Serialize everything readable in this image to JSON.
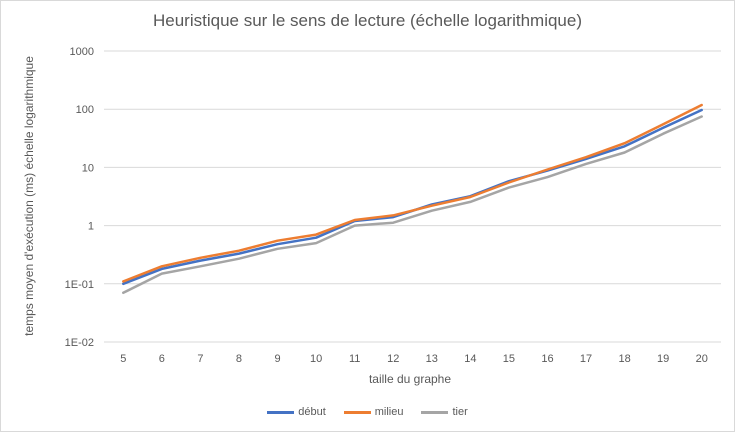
{
  "chart_data": {
    "type": "line",
    "title": "Heuristique sur le sens de lecture (échelle logarithmique)",
    "xlabel": "taille du graphe",
    "ylabel": "temps moyen d'exécution (ms) échelle logarithmique",
    "y_scale": "log",
    "ylim": [
      0.01,
      1000
    ],
    "y_tick_labels": [
      "1E-02",
      "1E-01",
      "1",
      "10",
      "100",
      "1000"
    ],
    "grid": true,
    "legend_position": "bottom",
    "x": [
      5,
      6,
      7,
      8,
      9,
      10,
      11,
      12,
      13,
      14,
      15,
      16,
      17,
      18,
      19,
      20
    ],
    "series": [
      {
        "name": "début",
        "color": "#4472c4",
        "values": [
          0.1,
          0.18,
          0.25,
          0.33,
          0.48,
          0.62,
          1.2,
          1.4,
          2.3,
          3.2,
          5.8,
          8.8,
          14,
          23,
          48,
          97
        ]
      },
      {
        "name": "milieu",
        "color": "#ed7d31",
        "values": [
          0.11,
          0.2,
          0.28,
          0.37,
          0.55,
          0.7,
          1.25,
          1.5,
          2.2,
          3.1,
          5.5,
          9.2,
          15,
          26,
          55,
          118
        ]
      },
      {
        "name": "tier",
        "color": "#a5a5a5",
        "values": [
          0.07,
          0.15,
          0.2,
          0.27,
          0.4,
          0.5,
          1.0,
          1.12,
          1.8,
          2.55,
          4.5,
          6.8,
          11.5,
          18,
          38,
          75
        ]
      }
    ]
  }
}
